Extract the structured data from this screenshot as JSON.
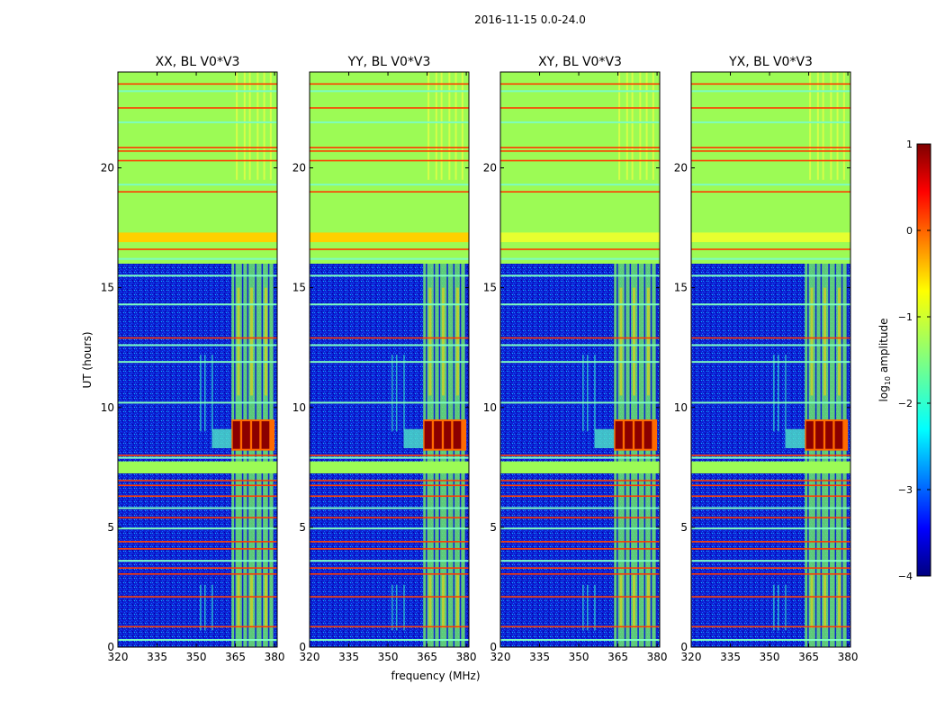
{
  "figure": {
    "suptitle": "2016-11-15 0.0-24.0",
    "xlabel": "frequency (MHz)",
    "ylabel": "UT (hours)"
  },
  "chart_data": {
    "type": "heatmap",
    "ylim": [
      0,
      24
    ],
    "xlim": [
      320,
      381
    ],
    "xticks": [
      320,
      335,
      350,
      365,
      380
    ],
    "yticks": [
      0,
      5,
      10,
      15,
      20
    ],
    "colormap": "jet",
    "panels": [
      {
        "title": "XX, BL V0*V3",
        "pol": "XX"
      },
      {
        "title": "YY, BL V0*V3",
        "pol": "YY"
      },
      {
        "title": "XY, BL V0*V3",
        "pol": "XY"
      },
      {
        "title": "YX, BL V0*V3",
        "pol": "YX"
      }
    ],
    "colorbar": {
      "label": "log10 amplitude",
      "label_base": "log",
      "label_sub": "10",
      "label_rest": " amplitude",
      "range": [
        -4,
        1
      ],
      "ticks": [
        1,
        0,
        -1,
        -2,
        -3,
        -4
      ],
      "tick_labels": [
        "1",
        "0",
        "−1",
        "−2",
        "−3",
        "−4"
      ]
    },
    "features": {
      "flagged_blocks_hours": [
        [
          7.25,
          7.75
        ],
        [
          16.0,
          24.0
        ]
      ],
      "rfi_band_mhz": [
        363.5,
        380
      ],
      "strong_event_hours": [
        8.2,
        9.5
      ],
      "red_lines_hours": [
        0.85,
        2.1,
        3.05,
        3.3,
        4.1,
        4.4,
        5.4,
        6.3,
        6.75,
        6.95,
        8.0,
        12.9,
        16.6,
        19.0,
        20.3,
        20.7,
        20.85,
        22.5,
        23.5
      ],
      "cyan_lines_hours": [
        0.3,
        3.6,
        4.95,
        5.8,
        7.9,
        10.2,
        11.9,
        12.6,
        14.3,
        15.5,
        16.2,
        19.3,
        21.9,
        23.2
      ]
    }
  }
}
